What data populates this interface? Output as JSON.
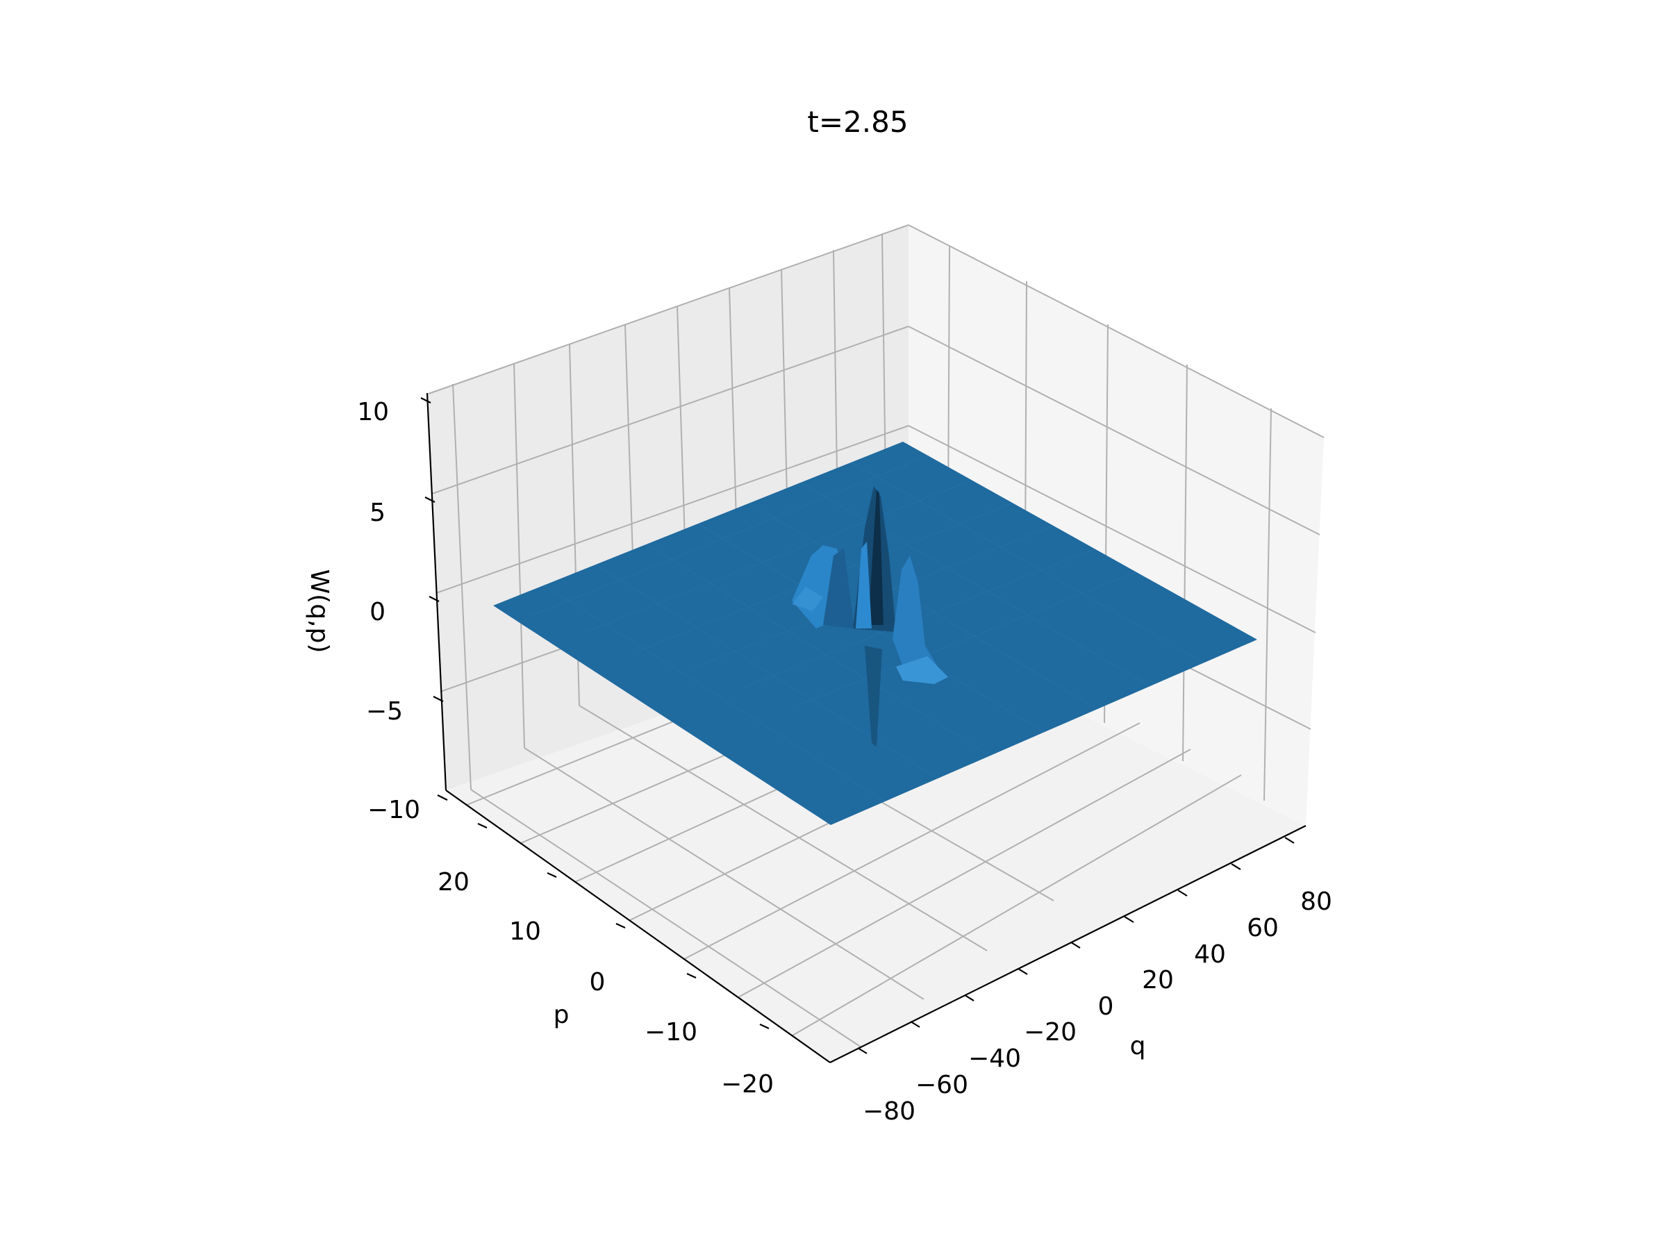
{
  "chart_data": {
    "type": "surface3d",
    "title": "t=2.85",
    "xlabel": "q",
    "ylabel": "p",
    "zlabel": "W(q,p)",
    "xlim": [
      -90,
      90
    ],
    "ylim": [
      -27,
      27
    ],
    "zlim": [
      -11,
      11
    ],
    "xticks": [
      -80,
      -60,
      -40,
      -20,
      0,
      20,
      40,
      60,
      80
    ],
    "yticks": [
      -20,
      -10,
      0,
      10,
      20
    ],
    "zticks": [
      -10,
      -5,
      0,
      5,
      10
    ],
    "xtick_labels": [
      "−80",
      "−60",
      "−40",
      "−20",
      "0",
      "20",
      "40",
      "60",
      "80"
    ],
    "ytick_labels": [
      "−20",
      "−10",
      "0",
      "10",
      "20"
    ],
    "ztick_labels": [
      "−10",
      "−5",
      "0",
      "5",
      "10"
    ],
    "surface_x_range": [
      -80,
      80
    ],
    "surface_y_range": [
      -25,
      25
    ],
    "baseline_z": 0,
    "surface_color": "#1f77b4",
    "grid": true,
    "peaks": [
      {
        "q": 0,
        "p": 4,
        "height": 8.5
      },
      {
        "q": 2,
        "p": 1.5,
        "height": -7.5
      },
      {
        "q": -14,
        "p": 8,
        "height": 3
      },
      {
        "q": 10,
        "p": -3,
        "height": 2.5
      }
    ]
  }
}
